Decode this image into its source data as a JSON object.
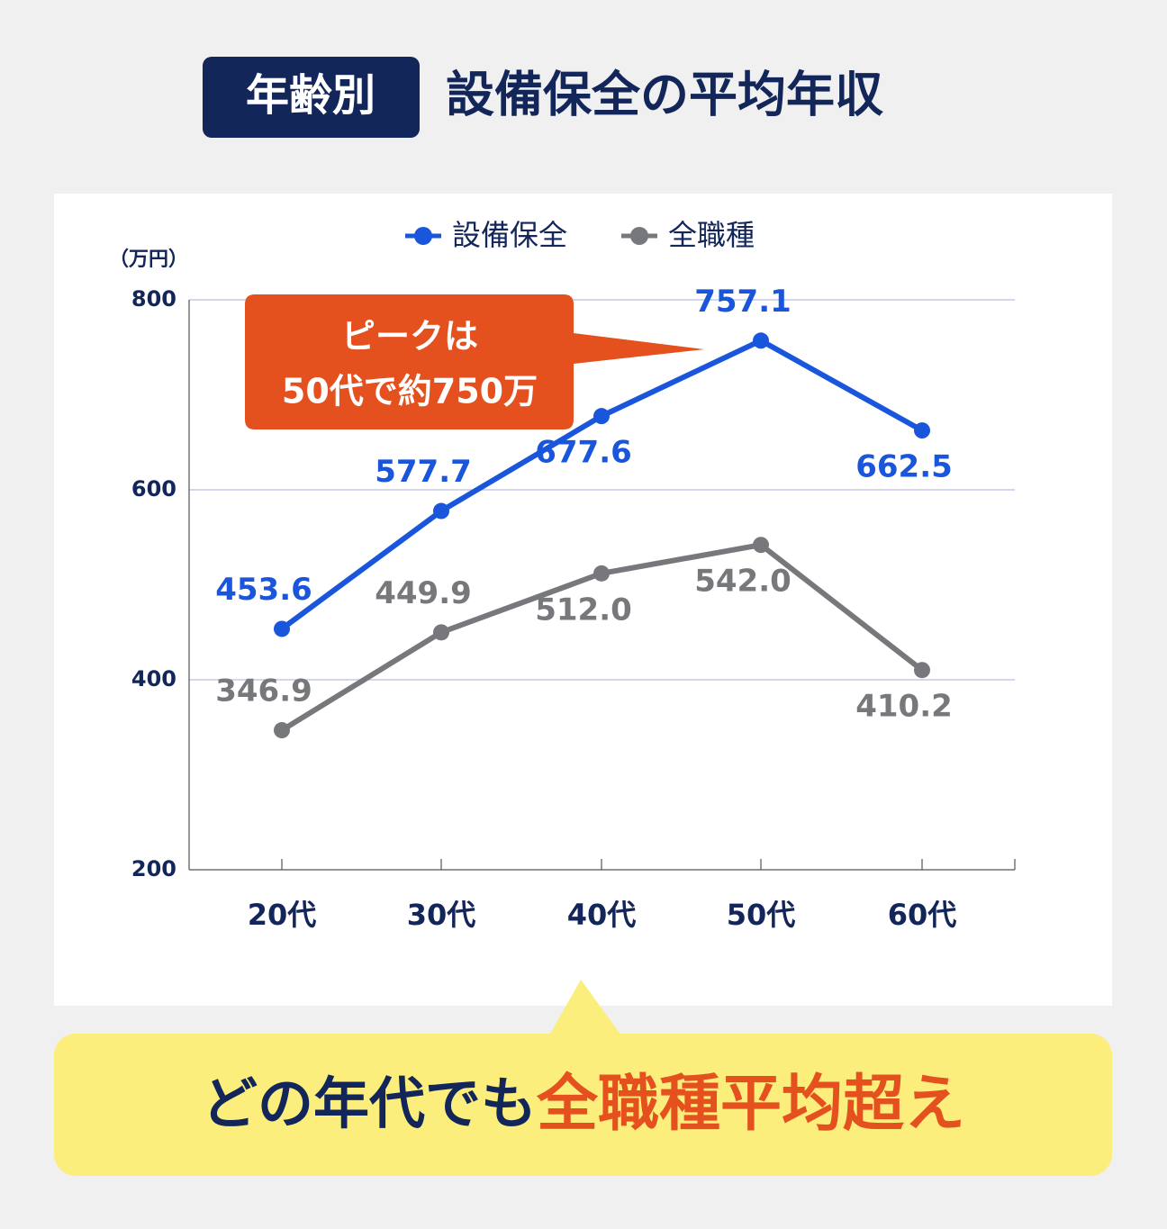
{
  "chart_data": {
    "type": "line",
    "title_badge": "年齢別",
    "title": "設備保全の平均年収",
    "y_label": "（万円）",
    "categories": [
      "20代",
      "30代",
      "40代",
      "50代",
      "60代"
    ],
    "series": [
      {
        "name": "設備保全",
        "color": "#1a56db",
        "values": [
          453.6,
          577.7,
          677.6,
          757.1,
          662.5
        ],
        "value_labels": [
          "453.6",
          "577.7",
          "677.6",
          "757.1",
          "662.5"
        ]
      },
      {
        "name": "全職種",
        "color": "#77787c",
        "values": [
          346.9,
          449.9,
          512.0,
          542.0,
          410.2
        ],
        "value_labels": [
          "346.9",
          "449.9",
          "512.0",
          "542.0",
          "410.2"
        ]
      }
    ],
    "ylim": [
      200,
      800
    ],
    "yticks": [
      200,
      400,
      600,
      800
    ],
    "grid": true,
    "annotation": [
      "ピークは",
      "50代で約750万"
    ],
    "footer": [
      "どの年代でも",
      "全職種平均超え"
    ]
  }
}
